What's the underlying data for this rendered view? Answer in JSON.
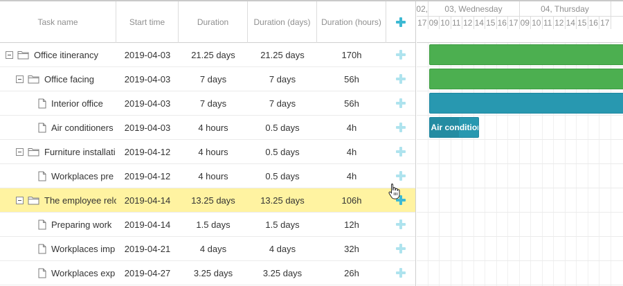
{
  "grid": {
    "columns": [
      {
        "key": "name",
        "label": "Task name"
      },
      {
        "key": "start",
        "label": "Start time"
      },
      {
        "key": "duration",
        "label": "Duration"
      },
      {
        "key": "duration_days",
        "label": "Duration (days)"
      },
      {
        "key": "duration_hours",
        "label": "Duration (hours)"
      },
      {
        "key": "add",
        "label": "",
        "icon": "plus-icon"
      }
    ],
    "rows": [
      {
        "name": "Office itinerancy",
        "start": "2019-04-03",
        "duration": "21.25 days",
        "duration_days": "21.25 days",
        "duration_hours": "170h",
        "type": "project",
        "level": 0,
        "expanded": true,
        "selected": false
      },
      {
        "name": "Office facing",
        "start": "2019-04-03",
        "duration": "7 days",
        "duration_days": "7 days",
        "duration_hours": "56h",
        "type": "project",
        "level": 1,
        "expanded": true,
        "selected": false
      },
      {
        "name": "Interior office",
        "start": "2019-04-03",
        "duration": "7 days",
        "duration_days": "7 days",
        "duration_hours": "56h",
        "type": "task",
        "level": 2,
        "selected": false
      },
      {
        "name": "Air conditioners",
        "start": "2019-04-03",
        "duration": "4 hours",
        "duration_days": "0.5 days",
        "duration_hours": "4h",
        "type": "task",
        "level": 2,
        "selected": false
      },
      {
        "name": "Furniture installati",
        "start": "2019-04-12",
        "duration": "4 hours",
        "duration_days": "0.5 days",
        "duration_hours": "4h",
        "type": "project",
        "level": 1,
        "expanded": true,
        "selected": false
      },
      {
        "name": "Workplaces pre",
        "start": "2019-04-12",
        "duration": "4 hours",
        "duration_days": "0.5 days",
        "duration_hours": "4h",
        "type": "task",
        "level": 2,
        "selected": false
      },
      {
        "name": "The employee relo",
        "start": "2019-04-14",
        "duration": "13.25 days",
        "duration_days": "13.25 days",
        "duration_hours": "106h",
        "type": "project",
        "level": 1,
        "expanded": true,
        "selected": true
      },
      {
        "name": "Preparing work",
        "start": "2019-04-14",
        "duration": "1.5 days",
        "duration_days": "1.5 days",
        "duration_hours": "12h",
        "type": "task",
        "level": 2,
        "selected": false
      },
      {
        "name": "Workplaces imp",
        "start": "2019-04-21",
        "duration": "4 days",
        "duration_days": "4 days",
        "duration_hours": "32h",
        "type": "task",
        "level": 2,
        "selected": false
      },
      {
        "name": "Workplaces exp",
        "start": "2019-04-27",
        "duration": "3.25 days",
        "duration_days": "3.25 days",
        "duration_hours": "26h",
        "type": "task",
        "level": 2,
        "selected": false
      }
    ]
  },
  "timeline": {
    "days": [
      {
        "label": "02,"
      },
      {
        "label": "03, Wednesday"
      },
      {
        "label": "04, Thursday"
      }
    ],
    "hours": [
      "17",
      "09",
      "10",
      "11",
      "12",
      "14",
      "15",
      "16",
      "17",
      "09",
      "10",
      "11",
      "12",
      "14",
      "15",
      "16",
      "17"
    ],
    "bars": [
      {
        "row": 0,
        "color": "green",
        "text": ""
      },
      {
        "row": 1,
        "color": "green",
        "text": ""
      },
      {
        "row": 2,
        "color": "blue",
        "text": ""
      },
      {
        "row": 3,
        "color": "blue",
        "text": "Air conditioners",
        "progress": 0.6
      }
    ]
  },
  "colors": {
    "project_bar": "#4caf50",
    "task_bar": "#2898b0",
    "selected_row": "#fff3a1",
    "add_icon": "#3db9d3"
  }
}
